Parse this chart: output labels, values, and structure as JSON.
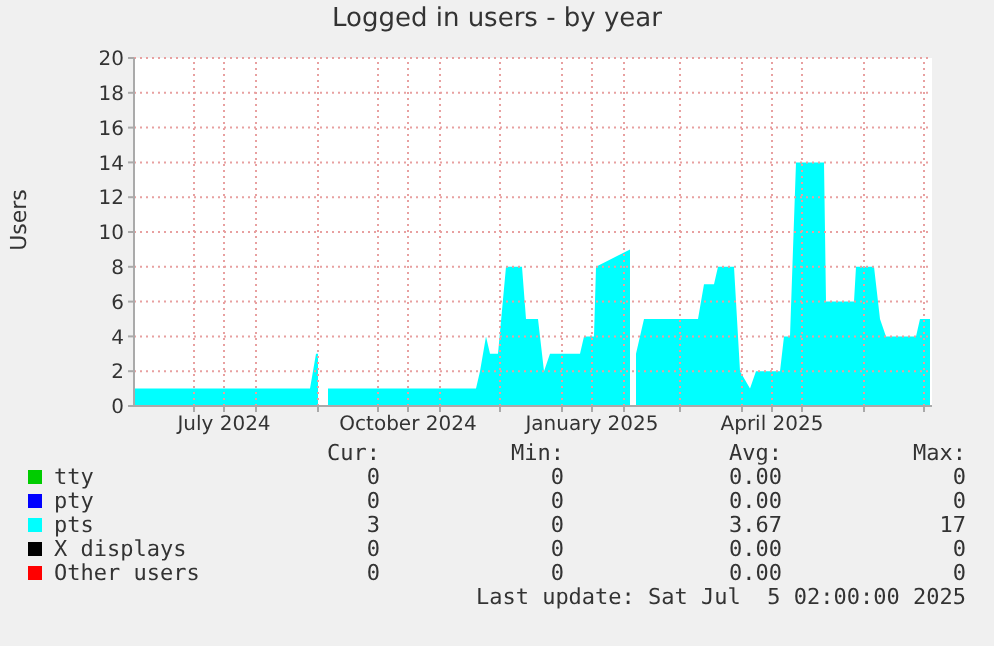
{
  "chart_data": {
    "type": "area",
    "title": "Logged in users - by year",
    "ylabel": "Users",
    "x": [
      "2024-06-01",
      "2024-08-28",
      "2024-08-31",
      "2024-09-01",
      "2024-09-03",
      "2024-09-06",
      "2024-11-19",
      "2024-11-21",
      "2024-11-24",
      "2024-11-26",
      "2024-11-30",
      "2024-12-04",
      "2024-12-12",
      "2024-12-14",
      "2024-12-20",
      "2024-12-23",
      "2024-12-26",
      "2025-01-10",
      "2025-01-12",
      "2025-01-17",
      "2025-01-18",
      "2025-02-04",
      "2025-02-05",
      "2025-02-07",
      "2025-02-11",
      "2025-03-10",
      "2025-03-13",
      "2025-03-18",
      "2025-03-20",
      "2025-03-28",
      "2025-03-31",
      "2025-04-05",
      "2025-04-08",
      "2025-04-20",
      "2025-04-22",
      "2025-04-25",
      "2025-04-28",
      "2025-05-12",
      "2025-05-13",
      "2025-05-27",
      "2025-05-28",
      "2025-06-06",
      "2025-06-09",
      "2025-06-12",
      "2025-06-27",
      "2025-06-29",
      "2025-07-04"
    ],
    "series": [
      {
        "name": "tty",
        "color": "#00cc00",
        "values": [
          null,
          null,
          null,
          null,
          null,
          null,
          null,
          null,
          null,
          null,
          null,
          null,
          null,
          null,
          null,
          null,
          null,
          null,
          null,
          null,
          null,
          null,
          null,
          null,
          null,
          null,
          null,
          null,
          null,
          null,
          null,
          null,
          null,
          null,
          null,
          null,
          null,
          null,
          null,
          null,
          null,
          null,
          null,
          null,
          null,
          null,
          null
        ]
      },
      {
        "name": "pty",
        "color": "#0000ff",
        "values": [
          null,
          null,
          null,
          null,
          null,
          null,
          null,
          null,
          null,
          null,
          null,
          null,
          null,
          null,
          null,
          null,
          null,
          null,
          null,
          null,
          null,
          null,
          null,
          null,
          null,
          null,
          null,
          null,
          null,
          null,
          null,
          null,
          null,
          null,
          null,
          null,
          null,
          null,
          null,
          null,
          null,
          null,
          null,
          null,
          null,
          null,
          null
        ]
      },
      {
        "name": "pts",
        "color": "#00ffff",
        "values": [
          1,
          1,
          3,
          3,
          null,
          1,
          1,
          2,
          4,
          3,
          3,
          8,
          8,
          5,
          5,
          2,
          3,
          3,
          4,
          4,
          8,
          9,
          null,
          3,
          5,
          5,
          7,
          7,
          8,
          8,
          2,
          1,
          2,
          2,
          4,
          4,
          14,
          14,
          6,
          6,
          8,
          8,
          5,
          4,
          4,
          5,
          5
        ]
      },
      {
        "name": "X displays",
        "color": "#000000",
        "values": [
          null,
          null,
          null,
          null,
          null,
          null,
          null,
          null,
          null,
          null,
          null,
          null,
          null,
          null,
          null,
          null,
          null,
          null,
          null,
          null,
          null,
          null,
          null,
          null,
          null,
          null,
          null,
          null,
          null,
          null,
          null,
          null,
          null,
          null,
          null,
          null,
          null,
          null,
          null,
          null,
          null,
          null,
          null,
          null,
          null,
          null,
          null
        ]
      },
      {
        "name": "Other users",
        "color": "#ff0000",
        "values": [
          null,
          null,
          null,
          null,
          null,
          null,
          null,
          null,
          null,
          null,
          null,
          null,
          null,
          null,
          null,
          null,
          null,
          null,
          null,
          null,
          null,
          null,
          null,
          null,
          null,
          null,
          null,
          null,
          null,
          null,
          null,
          null,
          null,
          null,
          null,
          null,
          null,
          null,
          null,
          null,
          null,
          null,
          null,
          null,
          null,
          null,
          null
        ]
      }
    ],
    "xlim": [
      "2024-06-01",
      "2025-07-05"
    ],
    "xticks": [
      {
        "value": "2024-07-01",
        "label": null
      },
      {
        "value": "2024-07-16",
        "label": "July 2024"
      },
      {
        "value": "2024-08-01",
        "label": null
      },
      {
        "value": "2024-09-01",
        "label": null
      },
      {
        "value": "2024-10-01",
        "label": null
      },
      {
        "value": "2024-10-16",
        "label": "October 2024"
      },
      {
        "value": "2024-11-01",
        "label": null
      },
      {
        "value": "2024-12-01",
        "label": null
      },
      {
        "value": "2025-01-01",
        "label": null
      },
      {
        "value": "2025-01-16",
        "label": "January 2025"
      },
      {
        "value": "2025-02-01",
        "label": null
      },
      {
        "value": "2025-03-01",
        "label": null
      },
      {
        "value": "2025-04-01",
        "label": null
      },
      {
        "value": "2025-04-16",
        "label": "April 2025"
      },
      {
        "value": "2025-05-01",
        "label": null
      },
      {
        "value": "2025-06-01",
        "label": null
      },
      {
        "value": "2025-07-01",
        "label": null
      }
    ],
    "ylim": [
      0,
      20
    ],
    "yticks": [
      0,
      2,
      4,
      6,
      8,
      10,
      12,
      14,
      16,
      18,
      20
    ],
    "grid": true,
    "legend": "bottom",
    "annotations": [
      "Cur:",
      "Min:",
      "Avg:",
      "Max:",
      "0",
      "0",
      "0.00",
      "0",
      "0",
      "0",
      "0.00",
      "0",
      "3",
      "0",
      "3.67",
      "17",
      "0",
      "0",
      "0.00",
      "0",
      "0",
      "0",
      "0.00",
      "0",
      "Last update: Sat Jul  5 02:00:00 2025"
    ]
  }
}
